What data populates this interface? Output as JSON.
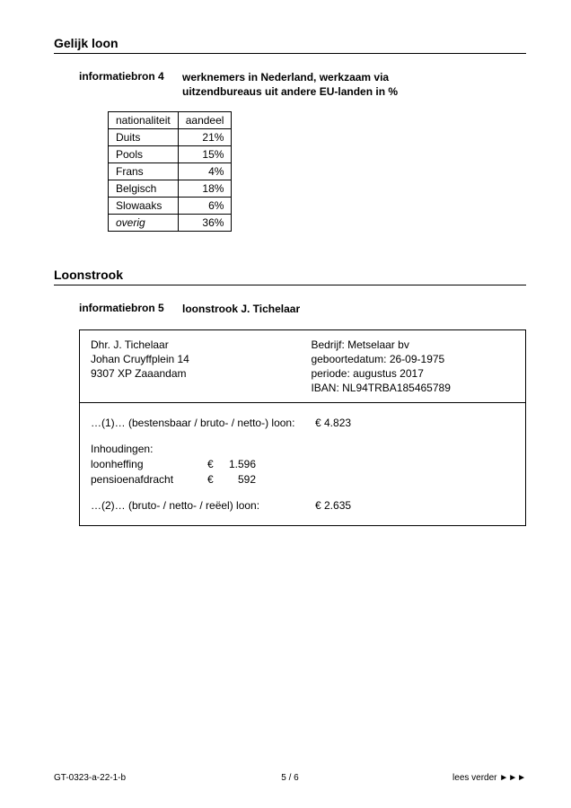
{
  "section1": {
    "title": "Gelijk loon",
    "info_label": "informatiebron 4",
    "info_text_line1": "werknemers in Nederland, werkzaam via",
    "info_text_line2": "uitzendbureaus uit andere EU-landen in %",
    "table": {
      "col_nationality": "nationaliteit",
      "col_share": "aandeel",
      "rows": [
        {
          "nat": "Duits",
          "val": "21%"
        },
        {
          "nat": "Pools",
          "val": "15%"
        },
        {
          "nat": "Frans",
          "val": "4%"
        },
        {
          "nat": "Belgisch",
          "val": "18%"
        },
        {
          "nat": "Slowaaks",
          "val": "6%"
        },
        {
          "nat": "overig",
          "val": "36%"
        }
      ]
    }
  },
  "section2": {
    "title": "Loonstrook",
    "info_label": "informatiebron 5",
    "info_text": "loonstrook J. Tichelaar",
    "slip": {
      "left": {
        "name": "Dhr. J. Tichelaar",
        "addr1": "Johan Cruyffplein 14",
        "addr2": "9307 XP Zaaandam"
      },
      "right": {
        "company": "Bedrijf: Metselaar bv",
        "birth": "geboortedatum: 26-09-1975",
        "period": "periode: augustus 2017",
        "iban": "IBAN: NL94TRBA185465789"
      },
      "line1_label": "…(1)… (bestensbaar / bruto- / netto-) loon:",
      "line1_amount": "€ 4.823",
      "deductions_title": "Inhoudingen:",
      "d1_label": "loonheffing",
      "d1_amount": "1.596",
      "d2_label": "pensioenafdracht",
      "d2_amount": "592",
      "euro": "€",
      "line2_label": "…(2)… (bruto- / netto- / reëel) loon:",
      "line2_amount": "€ 2.635"
    }
  },
  "footer": {
    "left": "GT-0323-a-22-1-b",
    "center": "5 / 6",
    "right_prefix": "lees verder",
    "right_arrow": "►►►"
  }
}
